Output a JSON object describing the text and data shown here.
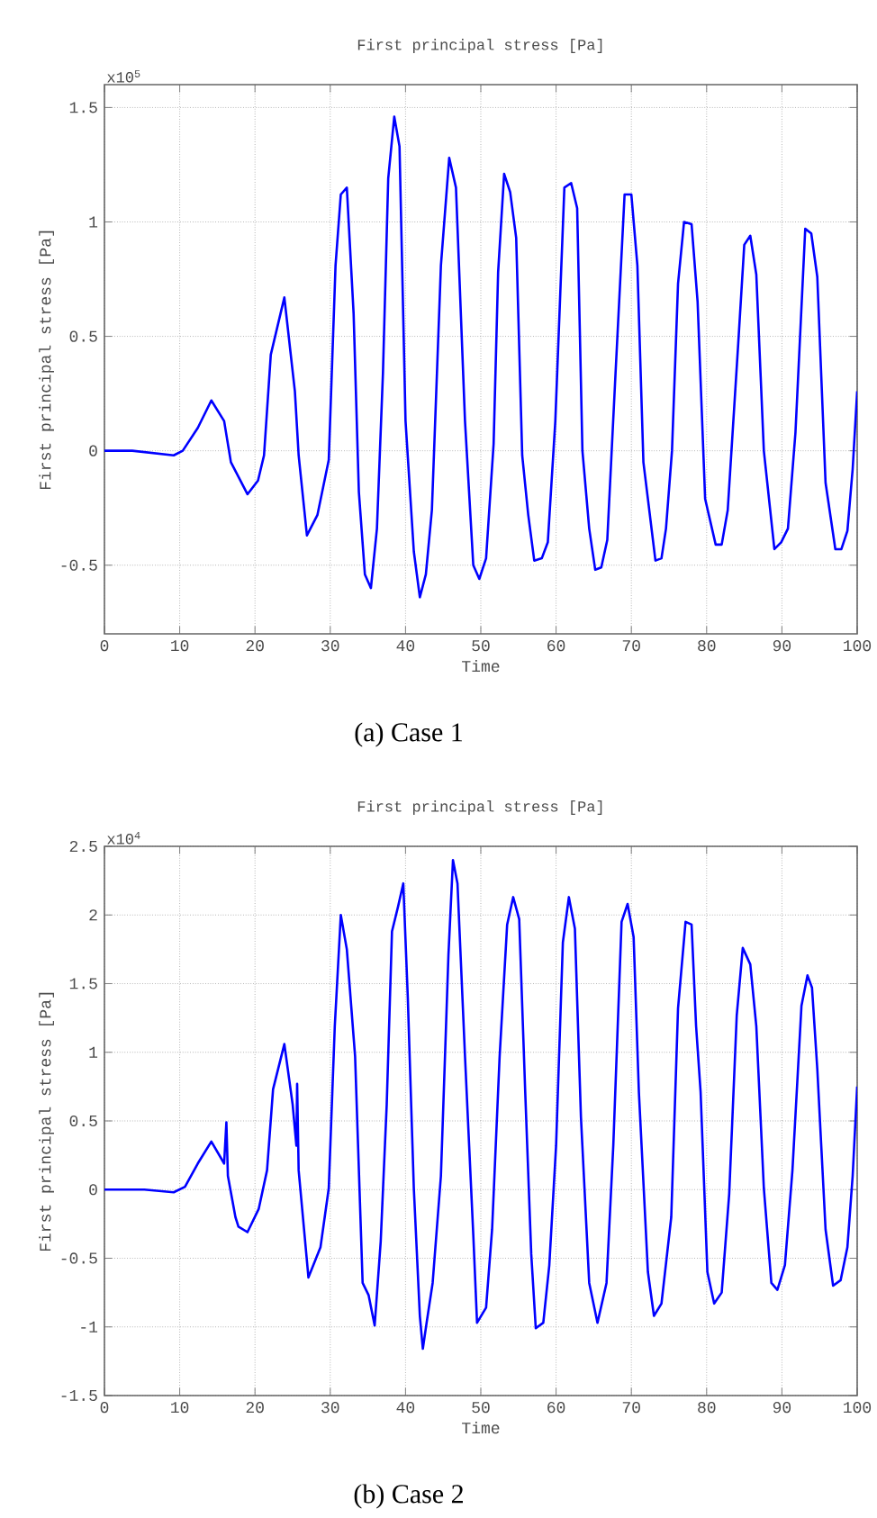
{
  "chart_data": [
    {
      "type": "line",
      "title": "First principal stress [Pa]",
      "xlabel": "Time",
      "ylabel": "First principal stress [Pa]",
      "xlim": [
        0,
        100
      ],
      "xticks": [
        0,
        10,
        20,
        30,
        40,
        50,
        60,
        70,
        80,
        90,
        100
      ],
      "ylim": [
        -0.8,
        1.6
      ],
      "yticks": [
        -0.5,
        0,
        0.5,
        1,
        1.5
      ],
      "grid": true,
      "marker": "none",
      "line_style": "solid",
      "annotations": [
        "x10$^{5}$",
        "(a)          Case 1"
      ],
      "series": [
        {
          "color": "#0000ff",
          "x": [
            0,
            3.7,
            9.2,
            10.4,
            12.4,
            14.2,
            15.9,
            16.8,
            19,
            20.4,
            21.2,
            22.1,
            23.9,
            25.3,
            25.8,
            26.9,
            28.3,
            29.8,
            30.7,
            31.4,
            32.2,
            33.1,
            33.8,
            34.6,
            35.4,
            36.2,
            37,
            37.7,
            38.5,
            39.2,
            40,
            41.1,
            41.9,
            42.7,
            43.5,
            44.7,
            45.8,
            46.7,
            47.9,
            49,
            49.8,
            50.7,
            51.7,
            52.3,
            53.1,
            53.9,
            54.7,
            55.5,
            56.3,
            57.1,
            58.1,
            58.9,
            59.9,
            61.1,
            62,
            62.8,
            63.5,
            64.4,
            65.2,
            66,
            66.8,
            67.9,
            69.1,
            70,
            70.8,
            71.6,
            73.2,
            74,
            74.6,
            75.4,
            76.2,
            77,
            78,
            78.8,
            79.8,
            81.2,
            82,
            82.8,
            84.2,
            85,
            85.8,
            86.6,
            87.6,
            89,
            89.9,
            90.8,
            91.8,
            93.1,
            93.9,
            94.7,
            95.8,
            97.1,
            97.9,
            98.7,
            99.4,
            100
          ],
          "values": [
            0,
            0,
            -0.02,
            0,
            0.1,
            0.22,
            0.13,
            -0.05,
            -0.19,
            -0.13,
            -0.02,
            0.42,
            0.67,
            0.26,
            -0.02,
            -0.37,
            -0.28,
            -0.04,
            0.81,
            1.12,
            1.15,
            0.6,
            -0.18,
            -0.54,
            -0.6,
            -0.34,
            0.34,
            1.19,
            1.46,
            1.33,
            0.13,
            -0.44,
            -0.64,
            -0.54,
            -0.26,
            0.81,
            1.28,
            1.15,
            0.13,
            -0.5,
            -0.56,
            -0.47,
            0.03,
            0.78,
            1.21,
            1.13,
            0.93,
            -0.02,
            -0.28,
            -0.48,
            -0.47,
            -0.4,
            0.13,
            1.15,
            1.17,
            1.06,
            0,
            -0.34,
            -0.52,
            -0.51,
            -0.39,
            0.34,
            1.12,
            1.12,
            0.81,
            -0.05,
            -0.48,
            -0.47,
            -0.34,
            0,
            0.73,
            1,
            0.99,
            0.65,
            -0.21,
            -0.41,
            -0.41,
            -0.26,
            0.47,
            0.9,
            0.94,
            0.77,
            0,
            -0.43,
            -0.4,
            -0.34,
            0.08,
            0.97,
            0.95,
            0.76,
            -0.14,
            -0.43,
            -0.43,
            -0.35,
            -0.08,
            0.26
          ]
        }
      ]
    },
    {
      "type": "line",
      "title": "First principal stress [Pa]",
      "xlabel": "Time",
      "ylabel": "First principal stress [Pa]",
      "xlim": [
        0,
        100
      ],
      "xticks": [
        0,
        10,
        20,
        30,
        40,
        50,
        60,
        70,
        80,
        90,
        100
      ],
      "ylim": [
        -1.5,
        2.5
      ],
      "yticks": [
        -1.5,
        -1,
        -0.5,
        0,
        0.5,
        1,
        1.5,
        2,
        2.5
      ],
      "grid": true,
      "marker": "none",
      "line_style": "solid",
      "annotations": [
        "x10$^{4}$",
        "(b)   Case 2"
      ],
      "series": [
        {
          "color": "#0000ff",
          "x": [
            0,
            5.3,
            9.2,
            10.7,
            12.4,
            14.2,
            15.9,
            16.2,
            16.4,
            17.4,
            17.8,
            19,
            20.5,
            21.6,
            22.4,
            23.9,
            25,
            25.5,
            25.6,
            25.8,
            27.1,
            28.7,
            29.8,
            30.6,
            31.4,
            32.2,
            33.3,
            34.3,
            35.1,
            35.9,
            36.7,
            37.5,
            38.2,
            39,
            39.7,
            40.3,
            41.1,
            41.9,
            42.3,
            42.8,
            43.6,
            44.7,
            45.7,
            46.3,
            46.9,
            47.9,
            49,
            49.5,
            50.7,
            51.5,
            52.5,
            53.5,
            54.3,
            55.1,
            55.9,
            56.7,
            57.3,
            58.3,
            59.1,
            60,
            60.9,
            61.7,
            62.5,
            63.3,
            64.4,
            65.5,
            66.7,
            67.6,
            68.7,
            69.5,
            70.3,
            71,
            72.2,
            73,
            74,
            75.3,
            76.2,
            77.2,
            78,
            78.6,
            79.2,
            80.1,
            81,
            82,
            83,
            84,
            84.8,
            85.8,
            86.6,
            87.6,
            88.6,
            89.4,
            90.4,
            91.4,
            92.6,
            93.4,
            94,
            94.7,
            95.8,
            96.8,
            97.8,
            98.7,
            99.4,
            100
          ],
          "values": [
            0,
            0,
            -0.02,
            0.02,
            0.19,
            0.35,
            0.19,
            0.49,
            0.1,
            -0.2,
            -0.27,
            -0.31,
            -0.14,
            0.14,
            0.73,
            1.06,
            0.62,
            0.32,
            0.77,
            0.14,
            -0.64,
            -0.42,
            0.01,
            1.19,
            2,
            1.75,
            0.97,
            -0.68,
            -0.77,
            -0.99,
            -0.38,
            0.62,
            1.88,
            2.06,
            2.23,
            1.4,
            0.01,
            -0.92,
            -1.16,
            -0.97,
            -0.68,
            0.1,
            1.71,
            2.4,
            2.23,
            0.97,
            -0.33,
            -0.97,
            -0.86,
            -0.29,
            0.97,
            1.93,
            2.13,
            1.97,
            0.71,
            -0.47,
            -1.01,
            -0.97,
            -0.55,
            0.32,
            1.8,
            2.13,
            1.9,
            0.53,
            -0.68,
            -0.97,
            -0.68,
            0.32,
            1.95,
            2.08,
            1.84,
            0.71,
            -0.6,
            -0.92,
            -0.83,
            -0.2,
            1.32,
            1.95,
            1.93,
            1.19,
            0.71,
            -0.6,
            -0.83,
            -0.75,
            -0.03,
            1.27,
            1.76,
            1.64,
            1.19,
            0.01,
            -0.68,
            -0.73,
            -0.55,
            0.14,
            1.34,
            1.56,
            1.47,
            0.88,
            -0.29,
            -0.7,
            -0.66,
            -0.42,
            0.1,
            0.75
          ]
        }
      ]
    }
  ]
}
